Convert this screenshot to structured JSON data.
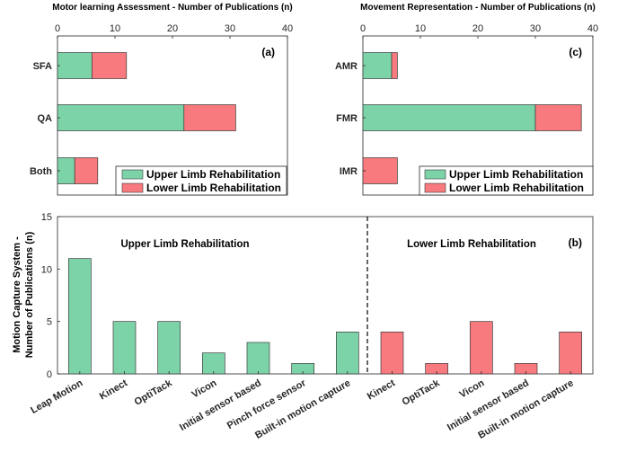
{
  "colors": {
    "upper": "#7dd3a8",
    "lower": "#f87a7e",
    "edge": "#3a3a3a"
  },
  "chart_data": [
    {
      "id": "a",
      "type": "bar",
      "orientation": "horizontal",
      "stacked": true,
      "panel_label": "(a)",
      "title": "Motor learning Assessment - Number of Publications (n)",
      "categories": [
        "SFA",
        "QA",
        "Both"
      ],
      "series": [
        {
          "name": "Upper Limb Rehabilitation",
          "values": [
            6,
            22,
            3
          ]
        },
        {
          "name": "Lower Limb Rehabilitation",
          "values": [
            6,
            9,
            4
          ]
        }
      ],
      "xlim": [
        0,
        40
      ],
      "xticks": [
        0,
        10,
        20,
        30,
        40
      ],
      "legend": "bottom-right",
      "grid": false
    },
    {
      "id": "c",
      "type": "bar",
      "orientation": "horizontal",
      "stacked": true,
      "panel_label": "(c)",
      "title": "Movement Representation - Number of Publications (n)",
      "categories": [
        "AMR",
        "FMR",
        "IMR"
      ],
      "series": [
        {
          "name": "Upper Limb Rehabilitation",
          "values": [
            5,
            30,
            0
          ]
        },
        {
          "name": "Lower Limb Rehabilitation",
          "values": [
            1,
            8,
            6
          ]
        }
      ],
      "xlim": [
        0,
        40
      ],
      "xticks": [
        0,
        10,
        20,
        30,
        40
      ],
      "legend": "bottom-right",
      "grid": false
    },
    {
      "id": "b",
      "type": "bar",
      "orientation": "vertical",
      "panel_label": "(b)",
      "ylabel": "Motion Capture System - Number of Publications (n)",
      "ylabel_lines": [
        "Motion Capture System -",
        "Number of Publications (n)"
      ],
      "ylim": [
        0,
        15
      ],
      "yticks": [
        0,
        5,
        10,
        15
      ],
      "groups": [
        {
          "label": "Upper Limb Rehabilitation",
          "series": "upper",
          "categories": [
            "Leap Motion",
            "Kinect",
            "OptiTack",
            "Vicon",
            "Initial sensor based",
            "Pinch force sensor",
            "Built-in motion capture"
          ],
          "values": [
            11,
            5,
            5,
            2,
            3,
            1,
            4
          ]
        },
        {
          "label": "Lower Limb Rehabilitation",
          "series": "lower",
          "categories": [
            "Kinect",
            "OptiTack",
            "Vicon",
            "Initial sensor based",
            "Built-in motion capture"
          ],
          "values": [
            4,
            1,
            5,
            1,
            4
          ]
        }
      ],
      "divider": "dashed line between groups",
      "grid": false
    }
  ]
}
